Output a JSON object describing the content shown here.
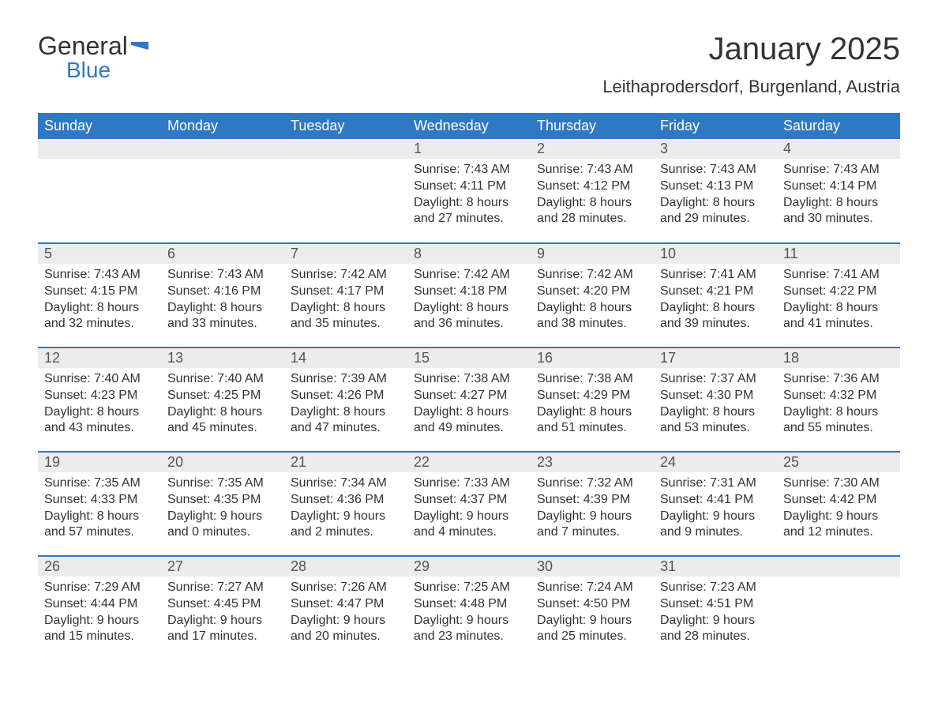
{
  "logo": {
    "general": "General",
    "blue": "Blue"
  },
  "title": "January 2025",
  "location": "Leithaprodersdorf, Burgenland, Austria",
  "weekdays": [
    "Sunday",
    "Monday",
    "Tuesday",
    "Wednesday",
    "Thursday",
    "Friday",
    "Saturday"
  ],
  "style": {
    "header_bg": "#2f78c4",
    "header_text": "#ffffff",
    "daynum_bg": "#ececec",
    "daynum_text": "#555555",
    "body_text": "#333333",
    "row_border": "#2f78c4",
    "page_bg": "#ffffff",
    "title_fontsize": 40,
    "location_fontsize": 22,
    "th_fontsize": 18,
    "daynum_fontsize": 18,
    "data_fontsize": 16
  },
  "weeks": [
    [
      null,
      null,
      null,
      {
        "n": "1",
        "sr": "Sunrise: 7:43 AM",
        "ss": "Sunset: 4:11 PM",
        "d1": "Daylight: 8 hours",
        "d2": "and 27 minutes."
      },
      {
        "n": "2",
        "sr": "Sunrise: 7:43 AM",
        "ss": "Sunset: 4:12 PM",
        "d1": "Daylight: 8 hours",
        "d2": "and 28 minutes."
      },
      {
        "n": "3",
        "sr": "Sunrise: 7:43 AM",
        "ss": "Sunset: 4:13 PM",
        "d1": "Daylight: 8 hours",
        "d2": "and 29 minutes."
      },
      {
        "n": "4",
        "sr": "Sunrise: 7:43 AM",
        "ss": "Sunset: 4:14 PM",
        "d1": "Daylight: 8 hours",
        "d2": "and 30 minutes."
      }
    ],
    [
      {
        "n": "5",
        "sr": "Sunrise: 7:43 AM",
        "ss": "Sunset: 4:15 PM",
        "d1": "Daylight: 8 hours",
        "d2": "and 32 minutes."
      },
      {
        "n": "6",
        "sr": "Sunrise: 7:43 AM",
        "ss": "Sunset: 4:16 PM",
        "d1": "Daylight: 8 hours",
        "d2": "and 33 minutes."
      },
      {
        "n": "7",
        "sr": "Sunrise: 7:42 AM",
        "ss": "Sunset: 4:17 PM",
        "d1": "Daylight: 8 hours",
        "d2": "and 35 minutes."
      },
      {
        "n": "8",
        "sr": "Sunrise: 7:42 AM",
        "ss": "Sunset: 4:18 PM",
        "d1": "Daylight: 8 hours",
        "d2": "and 36 minutes."
      },
      {
        "n": "9",
        "sr": "Sunrise: 7:42 AM",
        "ss": "Sunset: 4:20 PM",
        "d1": "Daylight: 8 hours",
        "d2": "and 38 minutes."
      },
      {
        "n": "10",
        "sr": "Sunrise: 7:41 AM",
        "ss": "Sunset: 4:21 PM",
        "d1": "Daylight: 8 hours",
        "d2": "and 39 minutes."
      },
      {
        "n": "11",
        "sr": "Sunrise: 7:41 AM",
        "ss": "Sunset: 4:22 PM",
        "d1": "Daylight: 8 hours",
        "d2": "and 41 minutes."
      }
    ],
    [
      {
        "n": "12",
        "sr": "Sunrise: 7:40 AM",
        "ss": "Sunset: 4:23 PM",
        "d1": "Daylight: 8 hours",
        "d2": "and 43 minutes."
      },
      {
        "n": "13",
        "sr": "Sunrise: 7:40 AM",
        "ss": "Sunset: 4:25 PM",
        "d1": "Daylight: 8 hours",
        "d2": "and 45 minutes."
      },
      {
        "n": "14",
        "sr": "Sunrise: 7:39 AM",
        "ss": "Sunset: 4:26 PM",
        "d1": "Daylight: 8 hours",
        "d2": "and 47 minutes."
      },
      {
        "n": "15",
        "sr": "Sunrise: 7:38 AM",
        "ss": "Sunset: 4:27 PM",
        "d1": "Daylight: 8 hours",
        "d2": "and 49 minutes."
      },
      {
        "n": "16",
        "sr": "Sunrise: 7:38 AM",
        "ss": "Sunset: 4:29 PM",
        "d1": "Daylight: 8 hours",
        "d2": "and 51 minutes."
      },
      {
        "n": "17",
        "sr": "Sunrise: 7:37 AM",
        "ss": "Sunset: 4:30 PM",
        "d1": "Daylight: 8 hours",
        "d2": "and 53 minutes."
      },
      {
        "n": "18",
        "sr": "Sunrise: 7:36 AM",
        "ss": "Sunset: 4:32 PM",
        "d1": "Daylight: 8 hours",
        "d2": "and 55 minutes."
      }
    ],
    [
      {
        "n": "19",
        "sr": "Sunrise: 7:35 AM",
        "ss": "Sunset: 4:33 PM",
        "d1": "Daylight: 8 hours",
        "d2": "and 57 minutes."
      },
      {
        "n": "20",
        "sr": "Sunrise: 7:35 AM",
        "ss": "Sunset: 4:35 PM",
        "d1": "Daylight: 9 hours",
        "d2": "and 0 minutes."
      },
      {
        "n": "21",
        "sr": "Sunrise: 7:34 AM",
        "ss": "Sunset: 4:36 PM",
        "d1": "Daylight: 9 hours",
        "d2": "and 2 minutes."
      },
      {
        "n": "22",
        "sr": "Sunrise: 7:33 AM",
        "ss": "Sunset: 4:37 PM",
        "d1": "Daylight: 9 hours",
        "d2": "and 4 minutes."
      },
      {
        "n": "23",
        "sr": "Sunrise: 7:32 AM",
        "ss": "Sunset: 4:39 PM",
        "d1": "Daylight: 9 hours",
        "d2": "and 7 minutes."
      },
      {
        "n": "24",
        "sr": "Sunrise: 7:31 AM",
        "ss": "Sunset: 4:41 PM",
        "d1": "Daylight: 9 hours",
        "d2": "and 9 minutes."
      },
      {
        "n": "25",
        "sr": "Sunrise: 7:30 AM",
        "ss": "Sunset: 4:42 PM",
        "d1": "Daylight: 9 hours",
        "d2": "and 12 minutes."
      }
    ],
    [
      {
        "n": "26",
        "sr": "Sunrise: 7:29 AM",
        "ss": "Sunset: 4:44 PM",
        "d1": "Daylight: 9 hours",
        "d2": "and 15 minutes."
      },
      {
        "n": "27",
        "sr": "Sunrise: 7:27 AM",
        "ss": "Sunset: 4:45 PM",
        "d1": "Daylight: 9 hours",
        "d2": "and 17 minutes."
      },
      {
        "n": "28",
        "sr": "Sunrise: 7:26 AM",
        "ss": "Sunset: 4:47 PM",
        "d1": "Daylight: 9 hours",
        "d2": "and 20 minutes."
      },
      {
        "n": "29",
        "sr": "Sunrise: 7:25 AM",
        "ss": "Sunset: 4:48 PM",
        "d1": "Daylight: 9 hours",
        "d2": "and 23 minutes."
      },
      {
        "n": "30",
        "sr": "Sunrise: 7:24 AM",
        "ss": "Sunset: 4:50 PM",
        "d1": "Daylight: 9 hours",
        "d2": "and 25 minutes."
      },
      {
        "n": "31",
        "sr": "Sunrise: 7:23 AM",
        "ss": "Sunset: 4:51 PM",
        "d1": "Daylight: 9 hours",
        "d2": "and 28 minutes."
      },
      null
    ]
  ]
}
